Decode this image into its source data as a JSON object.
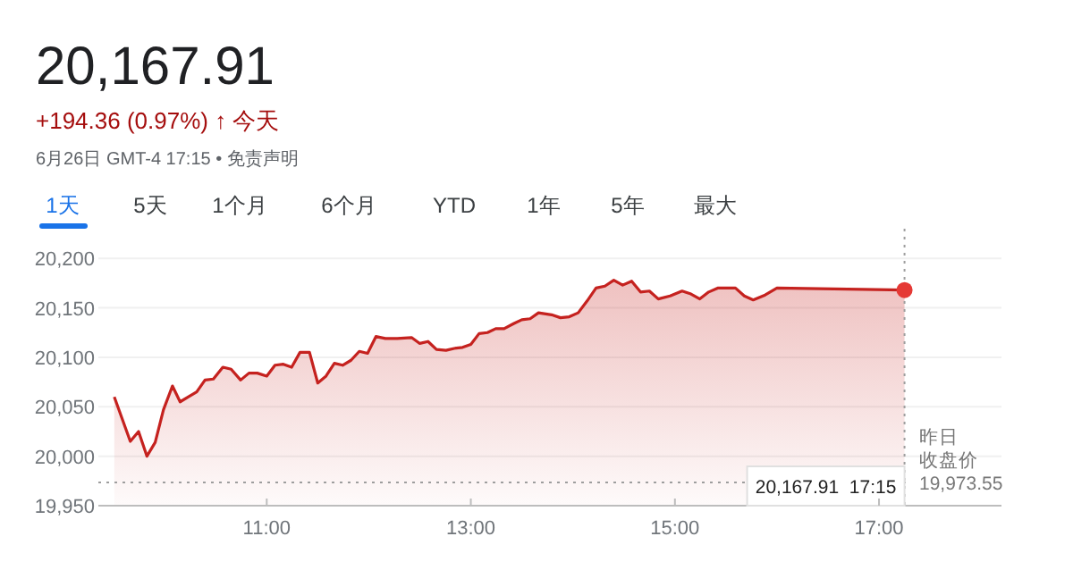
{
  "chart_data": {
    "type": "area",
    "title": "20,167.91",
    "subtitle": "+194.36 (0.97%) ↑ 今天",
    "annotations": [
      "6月26日 GMT-4 17:15 • 免责声明",
      "1天",
      "5天",
      "1个月",
      "6个月",
      "YTD",
      "1年",
      "5年",
      "最大"
    ],
    "xlim": [
      9.35,
      18.2
    ],
    "xticks": [
      {
        "value": 11,
        "label": "11:00"
      },
      {
        "value": 13,
        "label": "13:00"
      },
      {
        "value": 15,
        "label": "15:00"
      },
      {
        "value": 17,
        "label": "17:00"
      }
    ],
    "ylim": [
      19950,
      20230
    ],
    "yticks": [
      {
        "value": 19950,
        "label": "19,950"
      },
      {
        "value": 20000,
        "label": "20,000"
      },
      {
        "value": 20050,
        "label": "20,050"
      },
      {
        "value": 20100,
        "label": "20,100"
      },
      {
        "value": 20150,
        "label": "20,150"
      },
      {
        "value": 20200,
        "label": "20,200"
      }
    ],
    "grid": "y",
    "marker": "none",
    "line_style": "solid",
    "ref_lines": [
      {
        "axis": "y",
        "value": 19973.55,
        "label": "昨日收盘价\n19,973.55",
        "color": "#9e9e9e",
        "line_style": "dotted"
      },
      {
        "axis": "x",
        "value": 17.25,
        "label": "20,167.91  17:15",
        "color": "#9e9e9e",
        "line_style": "dotted"
      }
    ],
    "series": [
      {
        "color": "#c5221f",
        "x": [
          9.506,
          9.663,
          9.744,
          9.826,
          9.907,
          9.988,
          10.076,
          10.151,
          10.233,
          10.314,
          10.395,
          10.477,
          10.57,
          10.651,
          10.744,
          10.826,
          10.907,
          11.0,
          11.081,
          11.163,
          11.244,
          11.326,
          11.419,
          11.5,
          11.581,
          11.663,
          11.744,
          11.826,
          11.907,
          11.988,
          12.07,
          12.163,
          12.279,
          12.419,
          12.5,
          12.581,
          12.663,
          12.756,
          12.837,
          12.919,
          13.0,
          13.081,
          13.163,
          13.244,
          13.326,
          13.419,
          13.5,
          13.581,
          13.663,
          13.791,
          13.878,
          13.965,
          14.052,
          14.14,
          14.227,
          14.314,
          14.401,
          14.488,
          14.576,
          14.663,
          14.75,
          14.837,
          14.953,
          15.07,
          15.157,
          15.244,
          15.331,
          15.419,
          15.506,
          15.593,
          15.68,
          15.767,
          15.884,
          16.0,
          17.25
        ],
        "values": [
          20060,
          20015,
          20025,
          20000,
          20014,
          20047,
          20071,
          20055,
          20060,
          20065,
          20077,
          20078,
          20090,
          20088,
          20077,
          20084,
          20084,
          20081,
          20092,
          20093,
          20090,
          20105,
          20105,
          20074,
          20081,
          20094,
          20092,
          20097,
          20106,
          20104,
          20121,
          20119,
          20119,
          20120,
          20114,
          20116,
          20108,
          20107,
          20109,
          20110,
          20113,
          20124,
          20125,
          20129,
          20129,
          20134,
          20138,
          20139,
          20145,
          20143,
          20140,
          20141,
          20145,
          20157,
          20170,
          20172,
          20178,
          20173,
          20177,
          20166,
          20167,
          20159,
          20162,
          20167,
          20164,
          20159,
          20166,
          20170,
          20170,
          20170,
          20162,
          20158,
          20163,
          20170,
          20168
        ]
      },
      {
        "type": "scatter",
        "color": "#e53935",
        "marker": "circle",
        "x": [
          17.25
        ],
        "values": [
          20168
        ]
      }
    ]
  }
}
